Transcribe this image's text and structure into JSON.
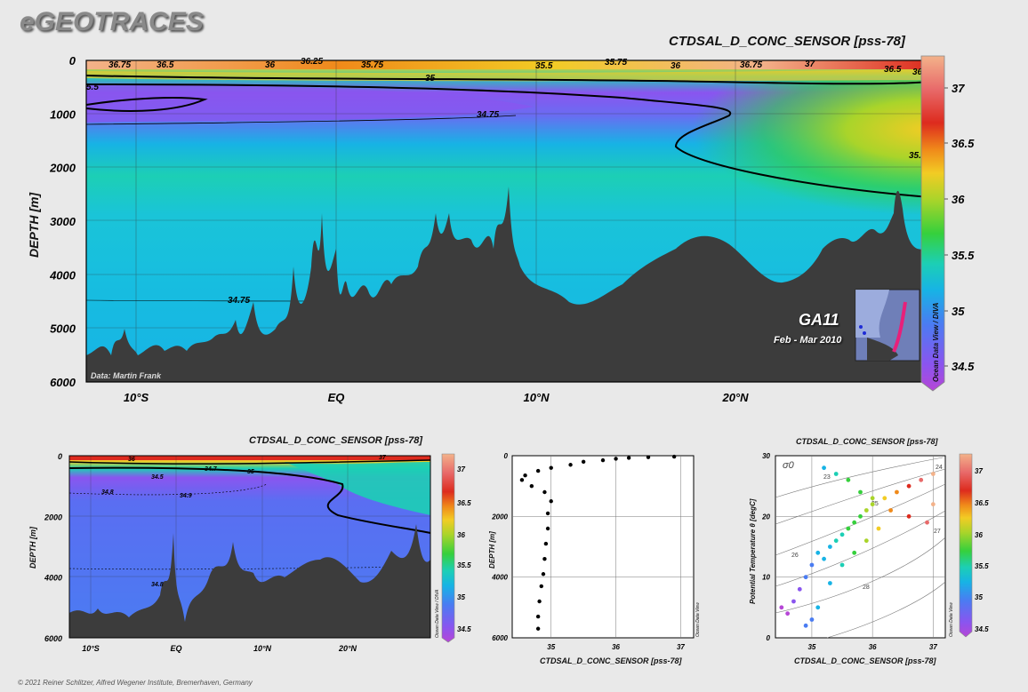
{
  "brand": "eGEOTRACES",
  "copyright": "© 2021 Reiner Schlitzer, Alfred Wegener Institute, Bremerhaven, Germany",
  "colors": {
    "background": "#e9e9e9",
    "seafloor": "#3c3c3c",
    "colorscale": [
      "#b646d6",
      "#8a55ef",
      "#4a7cf2",
      "#17b3e5",
      "#1ccfb5",
      "#36d03c",
      "#a9d42a",
      "#f2cc24",
      "#f08a1a",
      "#dd2b1e",
      "#e86a6a",
      "#f3b28a"
    ]
  },
  "main_section": {
    "title": "CTDSAL_D_CONC_SENSOR [pss-78]",
    "ylabel": "DEPTH [m]",
    "y_ticks": [
      "0",
      "1000",
      "2000",
      "3000",
      "4000",
      "5000",
      "6000"
    ],
    "x_ticks": [
      "10°S",
      "EQ",
      "10°N",
      "20°N"
    ],
    "contour_labels": [
      "36.75",
      "36.5",
      "36",
      "36.25",
      "35.75",
      "35.5",
      "35.75",
      "36",
      "36.75",
      "37",
      "36.5",
      "36.2",
      "5.5",
      "35",
      "34.75",
      "35.25",
      "34.75"
    ],
    "credit": "Data: Martin Frank",
    "cruise": "GA11",
    "cruise_dates": "Feb - Mar 2010",
    "odv_label": "Ocean Data View / DIVA",
    "colorbar_ticks": [
      "37",
      "36.5",
      "36",
      "35.5",
      "35",
      "34.5"
    ]
  },
  "bottom_section": {
    "title": "CTDSAL_D_CONC_SENSOR [pss-78]",
    "ylabel": "DEPTH [m]",
    "y_ticks": [
      "0",
      "2000",
      "4000",
      "6000"
    ],
    "x_ticks": [
      "10°S",
      "EQ",
      "10°N",
      "20°N"
    ],
    "contour_labels": [
      "36",
      "34.7",
      "35",
      "34.5",
      "34.8",
      "34.9",
      "34.8",
      "37"
    ],
    "odv_label": "Ocean Data View / DIVA",
    "colorbar_ticks": [
      "37",
      "36.5",
      "36",
      "35.5",
      "35",
      "34.5"
    ]
  },
  "chart_data": [
    {
      "type": "heatmap",
      "title": "CTDSAL_D_CONC_SENSOR [pss-78]",
      "ylabel": "DEPTH [m]",
      "xlabel": "",
      "x_categories": [
        "10°S",
        "EQ",
        "10°N",
        "20°N"
      ],
      "ylim": [
        6000,
        0
      ],
      "colorbar_range": [
        34.4,
        37.2
      ],
      "seafloor_depth_profile": {
        "latitude": [
          -14,
          -10,
          -6,
          -3,
          -1,
          1,
          3,
          5,
          6,
          8,
          10,
          13,
          15,
          18,
          20,
          23,
          25,
          28,
          30
        ],
        "depth_m": [
          5700,
          5500,
          5400,
          5600,
          5200,
          4600,
          3500,
          4300,
          3600,
          3800,
          4600,
          4800,
          4000,
          3200,
          3600,
          4700,
          4000,
          2400,
          3600
        ]
      }
    },
    {
      "type": "heatmap",
      "title": "CTDSAL_D_CONC_SENSOR [pss-78]",
      "ylabel": "DEPTH [m]",
      "x_categories": [
        "10°S",
        "EQ",
        "10°N",
        "20°N"
      ],
      "ylim": [
        6000,
        0
      ],
      "colorbar_range": [
        34.4,
        37.2
      ]
    },
    {
      "type": "scatter",
      "title": "",
      "xlabel": "CTDSAL_D_CONC_SENSOR [pss-78]",
      "ylabel": "DEPTH [m]",
      "xlim": [
        34.4,
        37.2
      ],
      "ylim": [
        6000,
        0
      ],
      "x_ticks": [
        "35",
        "36",
        "37"
      ],
      "y_ticks": [
        "0",
        "2000",
        "4000",
        "6000"
      ],
      "odv_label": "Ocean Data View",
      "points": [
        [
          36.9,
          30
        ],
        [
          36.5,
          50
        ],
        [
          36.2,
          70
        ],
        [
          36.0,
          100
        ],
        [
          35.8,
          150
        ],
        [
          35.5,
          200
        ],
        [
          35.3,
          300
        ],
        [
          35.0,
          400
        ],
        [
          34.8,
          500
        ],
        [
          34.6,
          650
        ],
        [
          34.55,
          800
        ],
        [
          34.7,
          1000
        ],
        [
          34.9,
          1200
        ],
        [
          35.0,
          1500
        ],
        [
          34.95,
          1900
        ],
        [
          34.95,
          2400
        ],
        [
          34.92,
          2900
        ],
        [
          34.9,
          3400
        ],
        [
          34.88,
          3900
        ],
        [
          34.85,
          4300
        ],
        [
          34.82,
          4800
        ],
        [
          34.8,
          5300
        ],
        [
          34.8,
          5700
        ]
      ]
    },
    {
      "type": "scatter",
      "title": "CTDSAL_D_CONC_SENSOR [pss-78]",
      "xlabel": "CTDSAL_D_CONC_SENSOR [pss-78]",
      "ylabel": "Potential Temperature θ [degC]",
      "xlim": [
        34.4,
        37.2
      ],
      "ylim": [
        0,
        30
      ],
      "x_ticks": [
        "35",
        "36",
        "37"
      ],
      "y_ticks": [
        "0",
        "10",
        "20",
        "30"
      ],
      "isopycnal_labels": [
        "σ0",
        "23",
        "24",
        "25",
        "26",
        "27",
        "28"
      ],
      "colorbar_ticks": [
        "37",
        "36.5",
        "36",
        "35.5",
        "35",
        "34.5"
      ],
      "odv_label": "Ocean Data View",
      "points": [
        [
          34.5,
          5
        ],
        [
          34.6,
          4
        ],
        [
          34.7,
          6
        ],
        [
          34.8,
          8
        ],
        [
          34.9,
          10
        ],
        [
          35.0,
          12
        ],
        [
          35.1,
          14
        ],
        [
          35.2,
          13
        ],
        [
          35.3,
          15
        ],
        [
          35.4,
          16
        ],
        [
          35.5,
          17
        ],
        [
          35.6,
          18
        ],
        [
          35.7,
          19
        ],
        [
          35.8,
          20
        ],
        [
          35.9,
          21
        ],
        [
          36.0,
          22
        ],
        [
          36.2,
          23
        ],
        [
          36.4,
          24
        ],
        [
          36.6,
          25
        ],
        [
          36.8,
          26
        ],
        [
          37.0,
          27
        ],
        [
          35.2,
          28
        ],
        [
          35.4,
          27
        ],
        [
          35.6,
          26
        ],
        [
          35.8,
          24
        ],
        [
          36.0,
          23
        ],
        [
          36.3,
          21
        ],
        [
          36.6,
          20
        ],
        [
          36.9,
          19
        ],
        [
          37.0,
          22
        ],
        [
          34.9,
          2
        ],
        [
          35.0,
          3
        ],
        [
          35.1,
          5
        ],
        [
          35.3,
          9
        ],
        [
          35.5,
          12
        ],
        [
          35.7,
          14
        ],
        [
          35.9,
          16
        ],
        [
          36.1,
          18
        ]
      ]
    }
  ]
}
